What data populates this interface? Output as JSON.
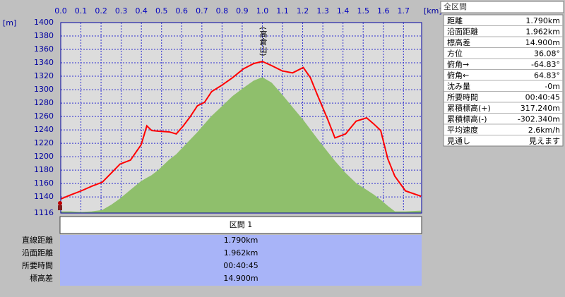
{
  "chart_data": {
    "type": "line",
    "y_unit": "[m]",
    "x_unit": "[km]",
    "annotation": "(高倉山)",
    "xlim": [
      0,
      1.79
    ],
    "ylim": [
      1116,
      1400
    ],
    "grid": true,
    "xticks": [
      {
        "value": 0,
        "label": "0.0"
      },
      0.1,
      0.2,
      0.3,
      0.4,
      0.5,
      0.6,
      0.7,
      0.8,
      0.9,
      {
        "value": 1,
        "label": "1.0"
      },
      1.1,
      1.2,
      1.3,
      1.4,
      1.5,
      1.6,
      1.7
    ],
    "yticks": [
      1116,
      1140,
      1160,
      1180,
      1200,
      1220,
      1240,
      1260,
      1280,
      1300,
      1320,
      1340,
      1360,
      1380,
      1400
    ],
    "x": [
      0,
      0.049,
      0.101,
      0.154,
      0.206,
      0.252,
      0.294,
      0.346,
      0.399,
      0.427,
      0.451,
      0.486,
      0.538,
      0.573,
      0.608,
      0.643,
      0.678,
      0.713,
      0.748,
      0.801,
      0.853,
      0.906,
      0.958,
      1.0,
      1.045,
      1.098,
      1.15,
      1.203,
      1.238,
      1.273,
      1.325,
      1.36,
      1.413,
      1.465,
      1.517,
      1.552,
      1.587,
      1.622,
      1.657,
      1.71,
      1.787
    ],
    "series": [
      {
        "style": "area",
        "color": "#8fbf6c",
        "values": [
          1118,
          1118,
          1117,
          1118,
          1120,
          1128,
          1137,
          1150,
          1163,
          1168,
          1172,
          1180,
          1195,
          1203,
          1214,
          1225,
          1236,
          1248,
          1260,
          1275,
          1290,
          1302,
          1313,
          1318,
          1310,
          1292,
          1273,
          1254,
          1240,
          1226,
          1206,
          1193,
          1175,
          1160,
          1150,
          1143,
          1135,
          1126,
          1118,
          1118,
          1119
        ]
      },
      {
        "style": "line",
        "color": "#ff0000",
        "values": [
          1137,
          1143,
          1149,
          1156,
          1162,
          1176,
          1189,
          1195,
          1218,
          1246,
          1239,
          1238,
          1237,
          1234,
          1246,
          1260,
          1276,
          1281,
          1297,
          1307,
          1318,
          1331,
          1339,
          1342,
          1336,
          1328,
          1325,
          1333,
          1318,
          1292,
          1255,
          1228,
          1234,
          1253,
          1258,
          1249,
          1239,
          1197,
          1171,
          1149,
          1141
        ]
      }
    ]
  },
  "section": {
    "header": "区間 1",
    "rows": [
      [
        "直線距離",
        "1.790km"
      ],
      [
        "沿面距離",
        "1.962km"
      ],
      [
        "所要時間",
        "00:40:45"
      ],
      [
        "標高差",
        "14.900m"
      ]
    ]
  },
  "panel": {
    "title": "全区間",
    "rows": [
      [
        "距離",
        "1.790km"
      ],
      [
        "沿面距離",
        "1.962km"
      ],
      [
        "標高差",
        "14.900m"
      ],
      [
        "方位",
        "36.08°"
      ],
      [
        "俯角→",
        "-64.83°"
      ],
      [
        "俯角←",
        "64.83°"
      ],
      [
        "沈み量",
        "-0m"
      ],
      [
        "所要時間",
        "00:40:45"
      ],
      [
        "累積標高(+)",
        "317.240m"
      ],
      [
        "累積標高(-)",
        "-302.340m"
      ],
      [
        "平均速度",
        "2.6km/h"
      ],
      [
        "見通し",
        "見えます"
      ]
    ]
  }
}
